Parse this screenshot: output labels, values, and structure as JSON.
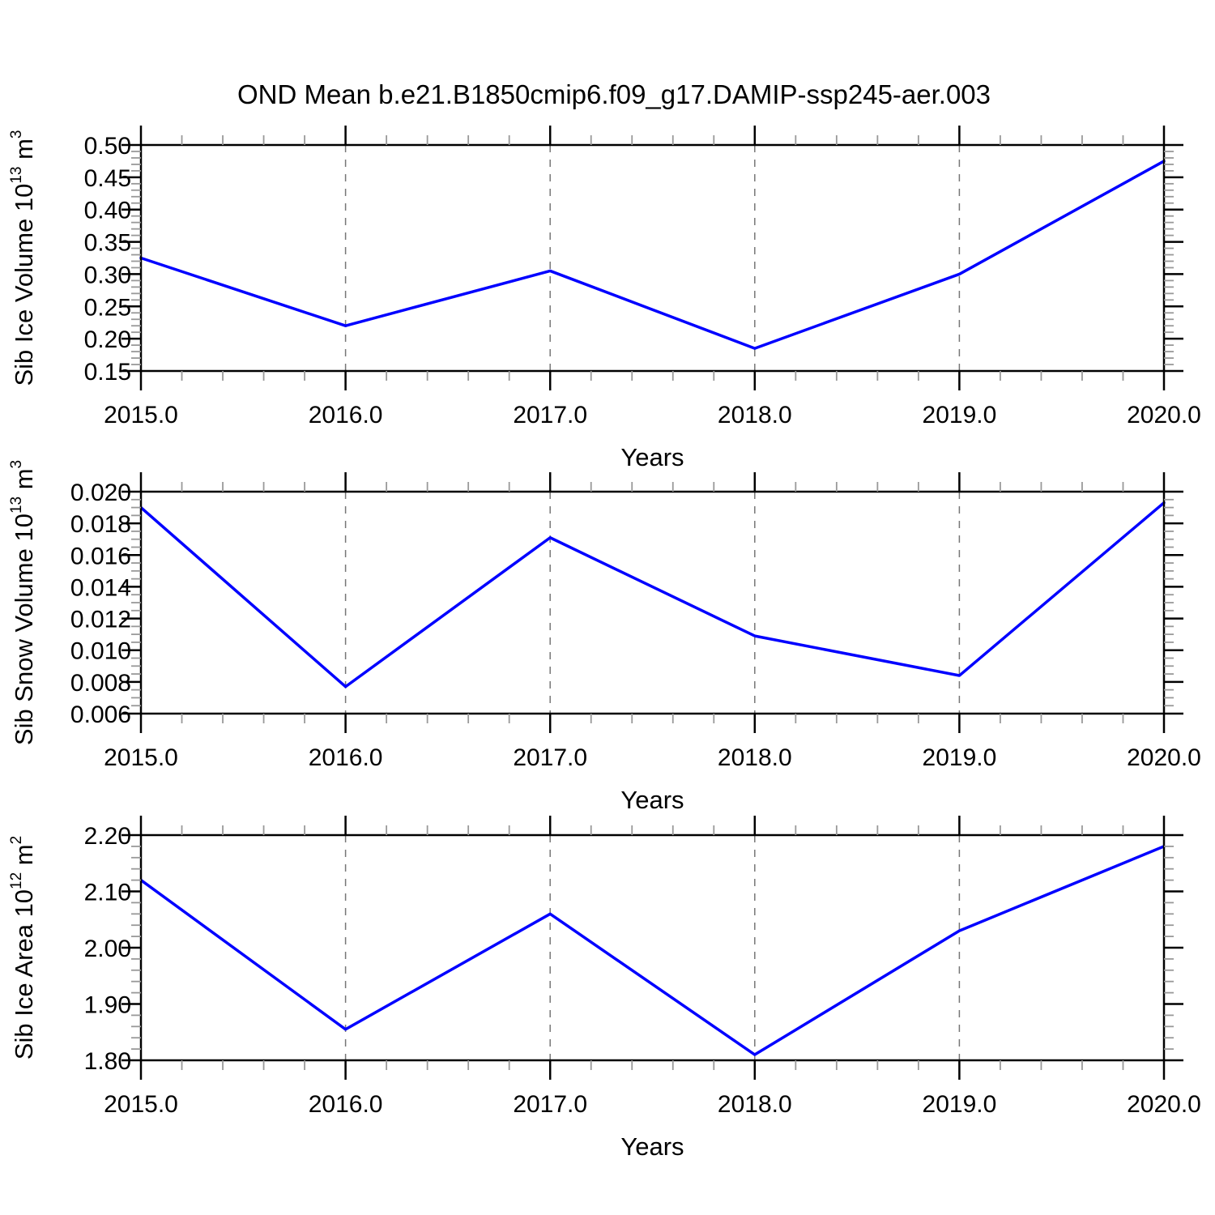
{
  "figure": {
    "title": "OND Mean b.e21.B1850cmip6.f09_g17.DAMIP-ssp245-aer.003",
    "background": "#ffffff",
    "line_color": "#0000ff",
    "frame_color": "#000000",
    "minor_tick_color": "#999999",
    "grid_color": "#777777"
  },
  "chart_data": [
    {
      "type": "line",
      "name": "sib-ice-volume",
      "title": "OND Mean b.e21.B1850cmip6.f09_g17.DAMIP-ssp245-aer.003",
      "xlabel": "Years",
      "ylabel": "Sib Ice Volume 10^13 m^3",
      "ylabel_parts": [
        {
          "text": "Sib Ice Volume 10"
        },
        {
          "text": "13",
          "sup": true
        },
        {
          "text": " m"
        },
        {
          "text": "3",
          "sup": true
        }
      ],
      "x": [
        2015.0,
        2016.0,
        2017.0,
        2018.0,
        2019.0,
        2020.0
      ],
      "values": [
        0.325,
        0.22,
        0.305,
        0.185,
        0.3,
        0.475
      ],
      "xlim": [
        2015.0,
        2020.0
      ],
      "ylim": [
        0.15,
        0.5
      ],
      "x_tick_values": [
        2015,
        2016,
        2017,
        2018,
        2019,
        2020
      ],
      "x_tick_labels": [
        "2015.0",
        "2016.0",
        "2017.0",
        "2018.0",
        "2019.0",
        "2020.0"
      ],
      "x_minor_step": 0.2,
      "y_tick_values": [
        0.15,
        0.2,
        0.25,
        0.3,
        0.35,
        0.4,
        0.45,
        0.5
      ],
      "y_tick_labels": [
        "0.15",
        "0.20",
        "0.25",
        "0.30",
        "0.35",
        "0.40",
        "0.45",
        "0.50"
      ],
      "y_minor_step": 0.01,
      "grid_x": [
        2016,
        2017,
        2018,
        2019
      ],
      "grid_style": "x-dashed",
      "legend": "none"
    },
    {
      "type": "line",
      "name": "sib-snow-volume",
      "title": "",
      "xlabel": "Years",
      "ylabel": "Sib Snow Volume 10^13 m^3",
      "ylabel_parts": [
        {
          "text": "Sib Snow Volume 10"
        },
        {
          "text": "13",
          "sup": true
        },
        {
          "text": " m"
        },
        {
          "text": "3",
          "sup": true
        }
      ],
      "x": [
        2015.0,
        2016.0,
        2017.0,
        2018.0,
        2019.0,
        2020.0
      ],
      "values": [
        0.019,
        0.0077,
        0.0171,
        0.0109,
        0.0084,
        0.0193
      ],
      "xlim": [
        2015.0,
        2020.0
      ],
      "ylim": [
        0.006,
        0.02
      ],
      "x_tick_values": [
        2015,
        2016,
        2017,
        2018,
        2019,
        2020
      ],
      "x_tick_labels": [
        "2015.0",
        "2016.0",
        "2017.0",
        "2018.0",
        "2019.0",
        "2020.0"
      ],
      "x_minor_step": 0.2,
      "y_tick_values": [
        0.006,
        0.008,
        0.01,
        0.012,
        0.014,
        0.016,
        0.018,
        0.02
      ],
      "y_tick_labels": [
        "0.006",
        "0.008",
        "0.010",
        "0.012",
        "0.014",
        "0.016",
        "0.018",
        "0.020"
      ],
      "y_minor_step": 0.0005,
      "grid_x": [
        2016,
        2017,
        2018,
        2019
      ],
      "grid_style": "x-dashed",
      "legend": "none"
    },
    {
      "type": "line",
      "name": "sib-ice-area",
      "title": "",
      "xlabel": "Years",
      "ylabel": "Sib Ice Area 10^12 m^2",
      "ylabel_parts": [
        {
          "text": "Sib Ice Area 10"
        },
        {
          "text": "12",
          "sup": true
        },
        {
          "text": " m"
        },
        {
          "text": "2",
          "sup": true
        }
      ],
      "x": [
        2015.0,
        2016.0,
        2017.0,
        2018.0,
        2019.0,
        2020.0
      ],
      "values": [
        2.12,
        1.855,
        2.06,
        1.81,
        2.03,
        2.18
      ],
      "xlim": [
        2015.0,
        2020.0
      ],
      "ylim": [
        1.8,
        2.2
      ],
      "x_tick_values": [
        2015,
        2016,
        2017,
        2018,
        2019,
        2020
      ],
      "x_tick_labels": [
        "2015.0",
        "2016.0",
        "2017.0",
        "2018.0",
        "2019.0",
        "2020.0"
      ],
      "x_minor_step": 0.2,
      "y_tick_values": [
        1.8,
        1.9,
        2.0,
        2.1,
        2.2
      ],
      "y_tick_labels": [
        "1.80",
        "1.90",
        "2.00",
        "2.10",
        "2.20"
      ],
      "y_minor_step": 0.02,
      "grid_x": [
        2016,
        2017,
        2018,
        2019
      ],
      "grid_style": "x-dashed",
      "legend": "none"
    }
  ]
}
